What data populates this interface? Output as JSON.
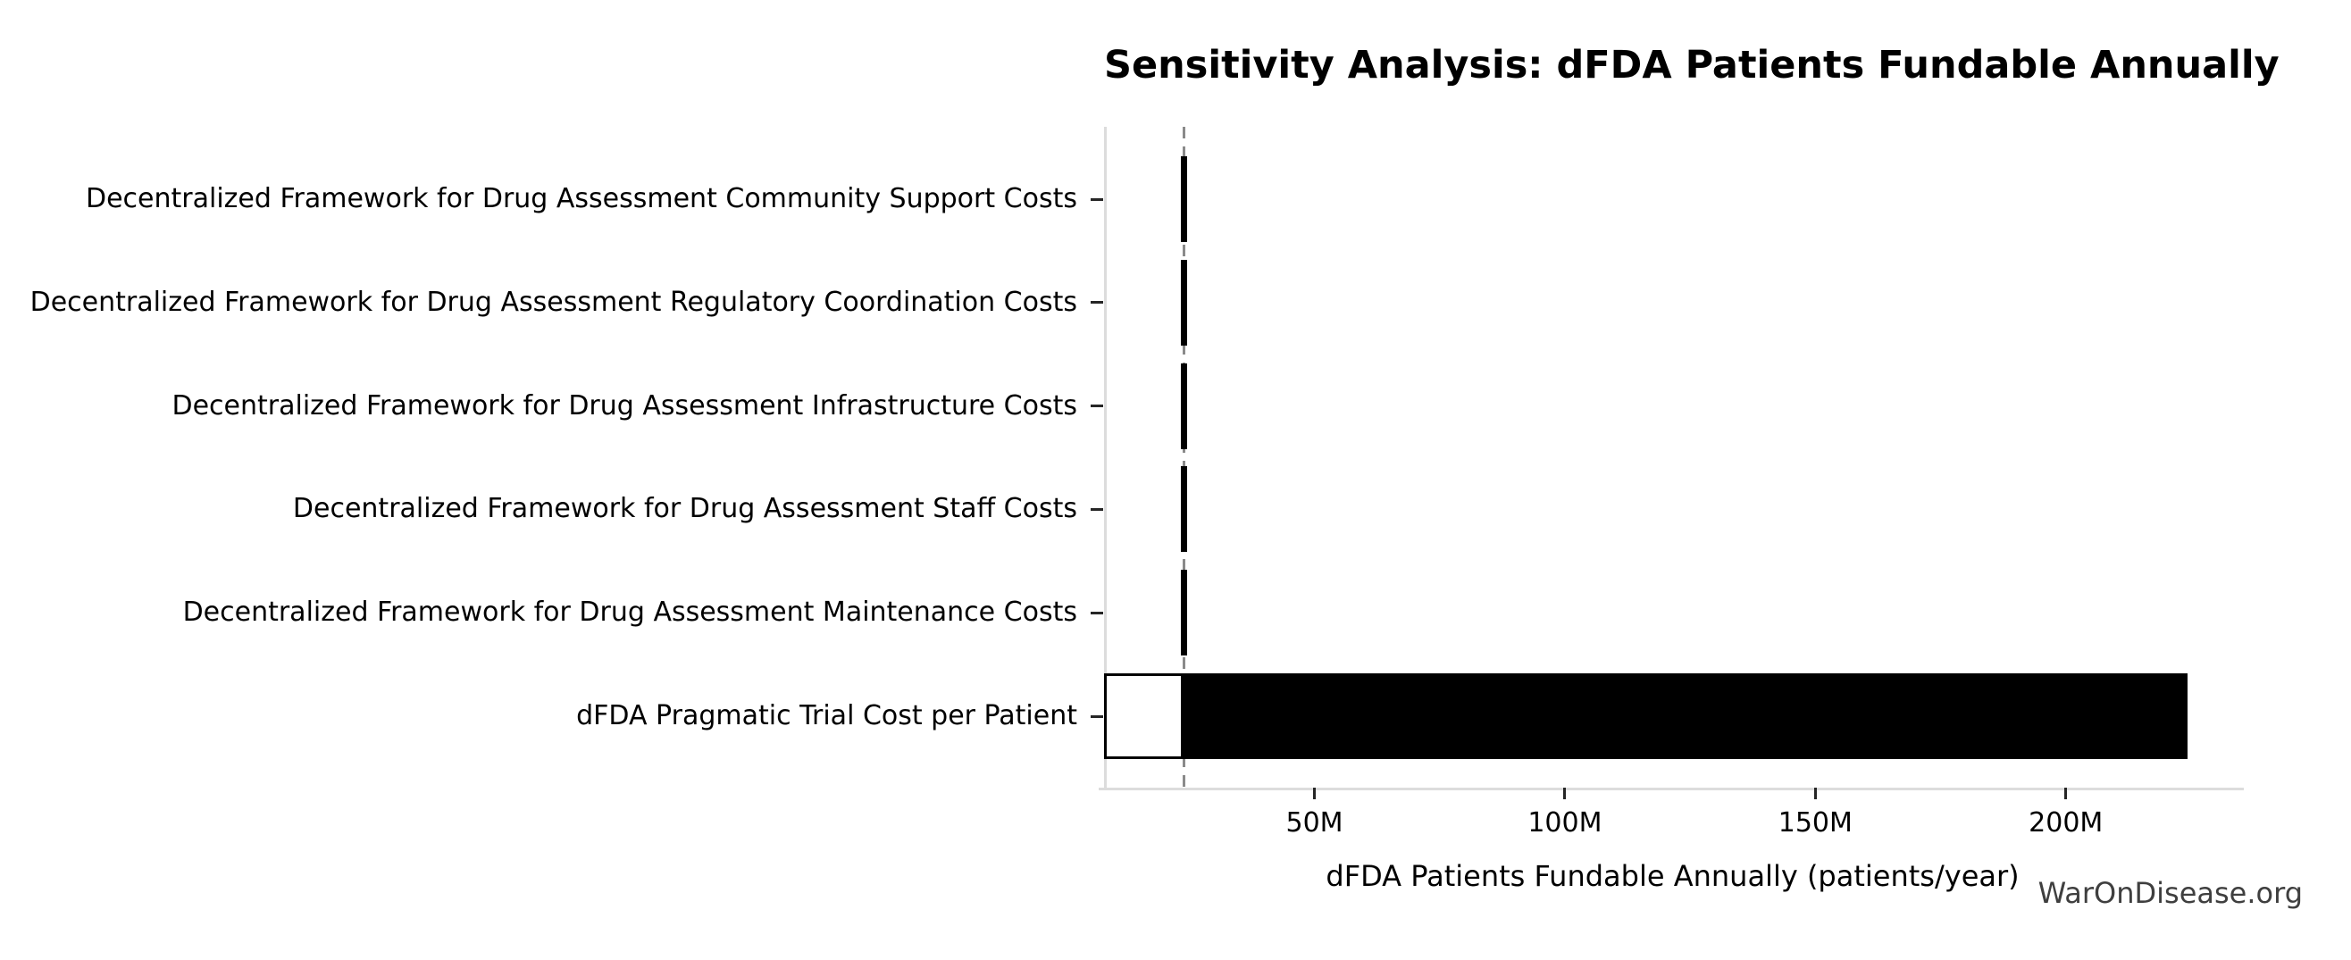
{
  "chart_data": {
    "type": "bar",
    "subtype": "tornado-sensitivity",
    "orientation": "horizontal",
    "title": "Sensitivity Analysis: dFDA Patients Fundable Annually",
    "xlabel": "dFDA Patients Fundable Annually (patients/year)",
    "watermark": "WarOnDisease.org",
    "units": "millions of patients per year",
    "grid": false,
    "legend": null,
    "xlim_m": [
      8,
      235
    ],
    "baseline_value_m": 23.9,
    "x_ticks": [
      {
        "label": "50M",
        "value_m": 50
      },
      {
        "label": "100M",
        "value_m": 100
      },
      {
        "label": "150M",
        "value_m": 150
      },
      {
        "label": "200M",
        "value_m": 200
      }
    ],
    "categories": [
      {
        "label": "Decentralized Framework for Drug Assessment Community Support Costs",
        "low_m": 23.3,
        "high_m": 24.5
      },
      {
        "label": "Decentralized Framework for Drug Assessment Regulatory Coordination Costs",
        "low_m": 23.3,
        "high_m": 24.5
      },
      {
        "label": "Decentralized Framework for Drug Assessment Infrastructure Costs",
        "low_m": 23.3,
        "high_m": 24.5
      },
      {
        "label": "Decentralized Framework for Drug Assessment Staff Costs",
        "low_m": 23.3,
        "high_m": 24.5
      },
      {
        "label": "Decentralized Framework for Drug Assessment Maintenance Costs",
        "low_m": 23.3,
        "high_m": 24.5
      },
      {
        "label": "dFDA Pragmatic Trial Cost per Patient",
        "low_m": 8.0,
        "high_m": 224.3
      }
    ],
    "colors": {
      "bar_fill": "#000000",
      "bar_low_fill": "#ffffff",
      "bar_edge": "#000000",
      "baseline_line": "#8a8a8a",
      "spine": "#dcdcdc",
      "text": "#000000",
      "watermark_text": "#3f3f3f",
      "background": "#ffffff"
    }
  }
}
